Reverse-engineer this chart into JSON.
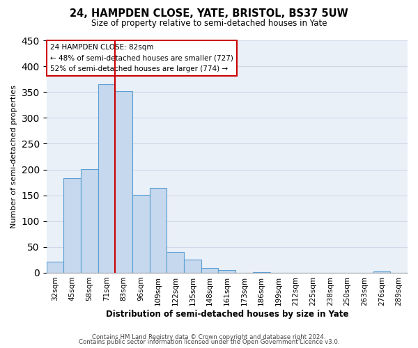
{
  "title": "24, HAMPDEN CLOSE, YATE, BRISTOL, BS37 5UW",
  "subtitle": "Size of property relative to semi-detached houses in Yate",
  "xlabel": "Distribution of semi-detached houses by size in Yate",
  "ylabel": "Number of semi-detached properties",
  "bin_labels": [
    "32sqm",
    "45sqm",
    "58sqm",
    "71sqm",
    "83sqm",
    "96sqm",
    "109sqm",
    "122sqm",
    "135sqm",
    "148sqm",
    "161sqm",
    "173sqm",
    "186sqm",
    "199sqm",
    "212sqm",
    "225sqm",
    "238sqm",
    "250sqm",
    "263sqm",
    "276sqm",
    "289sqm"
  ],
  "bar_values": [
    22,
    183,
    201,
    365,
    352,
    151,
    164,
    40,
    25,
    9,
    5,
    0,
    1,
    0,
    0,
    0,
    0,
    0,
    0,
    2,
    0
  ],
  "property_line_x": 3.5,
  "property_size": "82sqm",
  "pct_smaller": 48,
  "n_smaller": 727,
  "pct_larger": 52,
  "n_larger": 774,
  "bar_color": "#c5d8ed",
  "bar_edge_color": "#5a9fd4",
  "line_color": "#cc0000",
  "box_edge_color": "#cc0000",
  "ylim": [
    0,
    450
  ],
  "yticks": [
    0,
    50,
    100,
    150,
    200,
    250,
    300,
    350,
    400,
    450
  ],
  "grid_color": "#d0d8e8",
  "bg_color": "#eaf0f8",
  "footer1": "Contains HM Land Registry data © Crown copyright and database right 2024.",
  "footer2": "Contains public sector information licensed under the Open Government Licence v3.0."
}
